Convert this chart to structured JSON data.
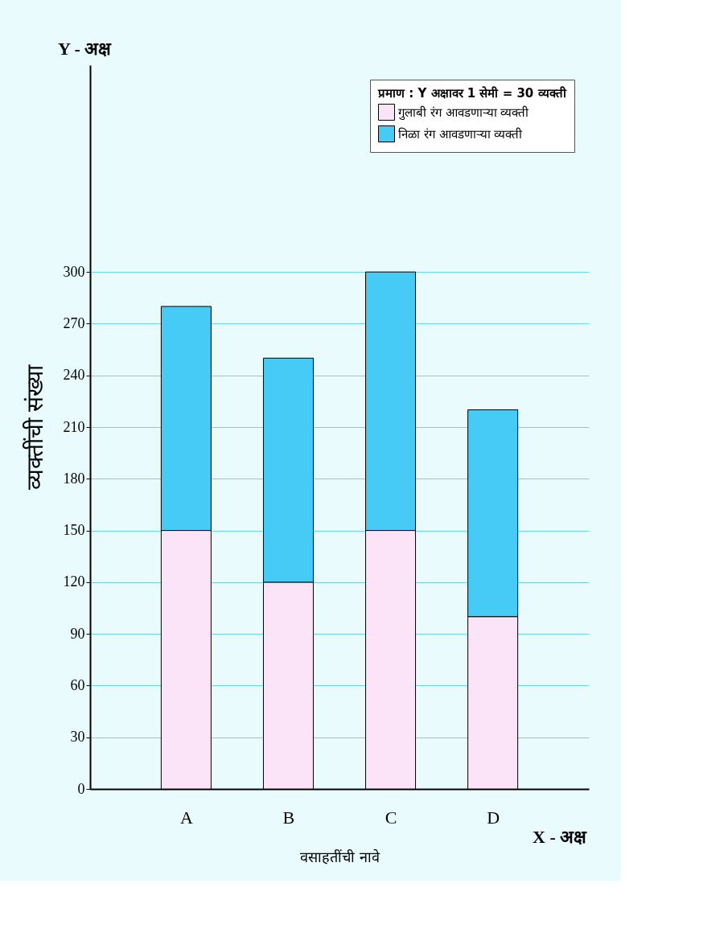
{
  "chart_data": {
    "type": "bar",
    "stacked": true,
    "categories": [
      "A",
      "B",
      "C",
      "D"
    ],
    "series": [
      {
        "name": "गुलाबी रंग आवडणाऱ्या व्यक्ती",
        "color": "#fce4f8",
        "values": [
          150,
          120,
          150,
          100
        ]
      },
      {
        "name": "निळा रंग आवडणाऱ्या व्यक्ती",
        "color": "#45cbf5",
        "values": [
          130,
          130,
          150,
          120
        ]
      }
    ],
    "xlabel": "वसाहतींची नावे",
    "ylabel": "व्यक्तींची संख्या",
    "legend_title": "प्रमाण : Y अक्षावर 1 सेमी = 30 व्यक्ती",
    "ylim": [
      0,
      420
    ],
    "yticks": [
      0,
      30,
      60,
      90,
      120,
      150,
      180,
      210,
      240,
      270,
      300
    ],
    "annotations": [
      "Y - अक्ष",
      "X - अक्ष"
    ],
    "grid": true,
    "legend": "top right"
  }
}
